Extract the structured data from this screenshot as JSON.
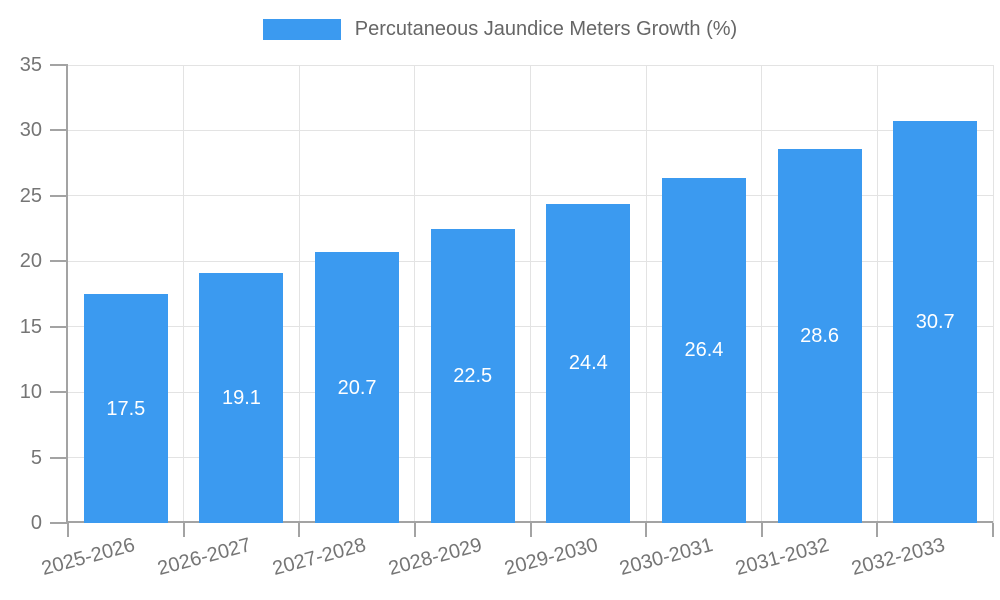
{
  "chart_data": {
    "type": "bar",
    "title": "Percutaneous Jaundice Meters Growth (%)",
    "categories": [
      "2025-2026",
      "2026-2027",
      "2027-2028",
      "2028-2029",
      "2029-2030",
      "2030-2031",
      "2031-2032",
      "2032-2033"
    ],
    "values": [
      17.5,
      19.1,
      20.7,
      22.5,
      24.4,
      26.4,
      28.6,
      30.7
    ],
    "value_labels": [
      "17.5",
      "19.1",
      "20.7",
      "22.5",
      "24.4",
      "26.4",
      "28.6",
      "30.7"
    ],
    "yticks": [
      0,
      5,
      10,
      15,
      20,
      25,
      30,
      35
    ],
    "ylim": [
      0,
      35
    ],
    "xlabel": "",
    "ylabel": "",
    "grid": true,
    "legend_position": "top",
    "colors": {
      "bar": "#3b9af0",
      "grid": "#e3e3e3",
      "axis": "#a3a3a3",
      "tick_label": "#757575",
      "legend_text": "#666666",
      "value_label": "#ffffff",
      "background": "#ffffff"
    }
  }
}
